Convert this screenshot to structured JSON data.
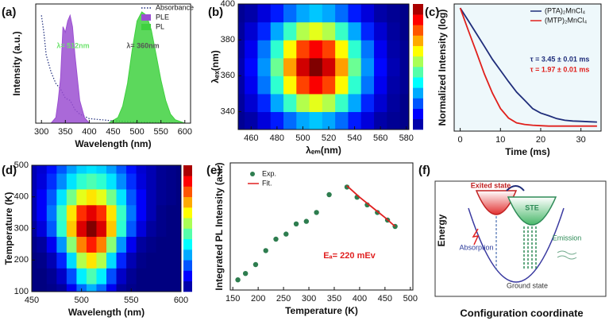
{
  "chart_data": [
    {
      "type": "line",
      "panel_label": "(a)",
      "x_label": "Wavelength (nm)",
      "y_label": "Intensity (a.u.)",
      "xlim": [
        288,
        612
      ],
      "xticks": [
        300,
        350,
        400,
        450,
        500,
        550,
        600
      ],
      "ylim": [
        0,
        105
      ],
      "legend": "upper right",
      "annotations": [
        {
          "text": "λ= 512nm",
          "color": "#6ee36e"
        },
        {
          "text": "λ= 360nm",
          "color": "#555555"
        }
      ],
      "series": [
        {
          "name": "Absorbance",
          "kind": "dotted",
          "color": "#1c2a7a",
          "x": [
            300,
            305,
            310,
            320,
            330,
            340,
            350,
            360,
            370,
            380,
            400,
            450,
            500,
            600
          ],
          "values": [
            95,
            80,
            60,
            45,
            35,
            30,
            22,
            20,
            12,
            8,
            4,
            2,
            1,
            0
          ]
        },
        {
          "name": "PLE",
          "kind": "area",
          "color": "#9b4fd1",
          "x": [
            320,
            330,
            335,
            340,
            345,
            350,
            355,
            360,
            365,
            370,
            375,
            380,
            390,
            400
          ],
          "values": [
            0,
            5,
            20,
            40,
            85,
            80,
            90,
            95,
            85,
            60,
            40,
            20,
            5,
            0
          ]
        },
        {
          "name": "PL",
          "kind": "area",
          "color": "#3fd13f",
          "x": [
            440,
            460,
            470,
            480,
            490,
            500,
            510,
            520,
            530,
            540,
            550,
            560,
            570,
            580,
            600
          ],
          "values": [
            0,
            5,
            15,
            35,
            65,
            90,
            98,
            95,
            82,
            60,
            38,
            20,
            8,
            3,
            0
          ]
        }
      ]
    },
    {
      "type": "heatmap",
      "panel_label": "(b)",
      "x_label": "λₑₘ(nm)",
      "y_label": "λₑₓ(nm)",
      "xlim": [
        450,
        582
      ],
      "xticks": [
        460,
        480,
        500,
        520,
        540,
        560,
        580
      ],
      "ylim": [
        330,
        400
      ],
      "yticks": [
        340,
        360,
        380,
        400
      ],
      "zlim": [
        0,
        100
      ],
      "colorbar": true,
      "x": [
        450,
        460,
        470,
        480,
        490,
        500,
        510,
        520,
        530,
        540,
        550,
        560,
        570,
        580
      ],
      "y": [
        335,
        345,
        355,
        365,
        375,
        385,
        395
      ],
      "z": [
        [
          2,
          4,
          9,
          15,
          23,
          29,
          32,
          29,
          23,
          15,
          9,
          4,
          2,
          1
        ],
        [
          3,
          8,
          16,
          29,
          43,
          55,
          60,
          55,
          43,
          29,
          16,
          8,
          3,
          1
        ],
        [
          4,
          11,
          24,
          42,
          63,
          81,
          88,
          81,
          63,
          42,
          24,
          11,
          4,
          2
        ],
        [
          5,
          13,
          27,
          48,
          72,
          92,
          100,
          92,
          72,
          48,
          27,
          13,
          5,
          2
        ],
        [
          4,
          11,
          24,
          42,
          63,
          81,
          88,
          81,
          63,
          42,
          24,
          11,
          4,
          2
        ],
        [
          3,
          8,
          16,
          29,
          43,
          55,
          60,
          55,
          43,
          29,
          16,
          8,
          3,
          1
        ],
        [
          2,
          4,
          9,
          15,
          23,
          29,
          32,
          29,
          23,
          15,
          9,
          4,
          2,
          1
        ]
      ]
    },
    {
      "type": "line",
      "panel_label": "(c)",
      "x_label": "Time (ms)",
      "y_label": "Normalized Intensity (log)",
      "xlim": [
        -1.5,
        35
      ],
      "xticks": [
        0,
        10,
        20,
        30
      ],
      "ylim": [
        0.004,
        1.2
      ],
      "log_y": true,
      "legend": "upper right",
      "annotations": [
        {
          "text": "τ = 3.45 ± 0.01 ms",
          "color": "#1f2d7a"
        },
        {
          "text": "τ = 1.97 ± 0.01 ms",
          "color": "#e0201c"
        }
      ],
      "x": [
        0,
        2,
        4,
        6,
        8,
        10,
        12,
        14,
        16,
        18,
        20,
        22,
        24,
        26,
        28,
        30,
        32,
        34
      ],
      "series": [
        {
          "name": "(PTA)₂MnCl₄",
          "kind": "line",
          "color": "#1f2d7a",
          "values": [
            1,
            0.57,
            0.32,
            0.18,
            0.1,
            0.061,
            0.037,
            0.023,
            0.016,
            0.011,
            0.009,
            0.008,
            0.007,
            0.0065,
            0.0063,
            0.0062,
            0.0061,
            0.006
          ]
        },
        {
          "name": "(MTP)₂MnCl₄",
          "kind": "line",
          "color": "#e0201c",
          "values": [
            1,
            0.37,
            0.14,
            0.052,
            0.022,
            0.011,
            0.0072,
            0.0058,
            0.0054,
            0.0052,
            0.0051,
            0.005,
            0.005,
            0.005,
            0.005,
            0.005,
            0.005,
            0.005
          ]
        }
      ]
    },
    {
      "type": "heatmap",
      "panel_label": "(d)",
      "x_label": "Wavelength (nm)",
      "y_label": "Temperature (K)",
      "xlim": [
        450,
        600
      ],
      "xticks": [
        450,
        500,
        550,
        600
      ],
      "ylim": [
        100,
        500
      ],
      "yticks": [
        100,
        200,
        300,
        400,
        500
      ],
      "zlim": [
        0,
        100
      ],
      "colorbar": true,
      "x": [
        450,
        460,
        470,
        480,
        490,
        500,
        510,
        520,
        530,
        540,
        550,
        560,
        570,
        580,
        590,
        600
      ],
      "y": [
        100,
        150,
        200,
        250,
        300,
        350,
        400,
        450,
        500
      ],
      "z": [
        [
          0,
          0,
          1,
          3,
          11,
          23,
          30,
          23,
          11,
          3,
          1,
          0,
          0,
          0,
          0,
          0
        ],
        [
          0,
          0,
          2,
          7,
          20,
          36,
          45,
          36,
          20,
          7,
          2,
          0,
          0,
          0,
          0,
          0
        ],
        [
          0,
          1,
          5,
          16,
          34,
          55,
          65,
          55,
          34,
          16,
          5,
          1,
          0,
          0,
          0,
          0
        ],
        [
          1,
          3,
          11,
          27,
          51,
          75,
          85,
          75,
          51,
          27,
          11,
          3,
          1,
          0,
          0,
          0
        ],
        [
          3,
          9,
          21,
          42,
          68,
          91,
          100,
          91,
          68,
          42,
          21,
          9,
          3,
          1,
          0,
          0
        ],
        [
          5,
          12,
          24,
          43,
          65,
          83,
          90,
          83,
          65,
          43,
          24,
          12,
          5,
          1,
          0,
          0
        ],
        [
          5,
          12,
          21,
          35,
          49,
          60,
          65,
          60,
          49,
          35,
          21,
          12,
          5,
          2,
          1,
          0
        ],
        [
          5,
          9,
          17,
          26,
          35,
          42,
          45,
          42,
          35,
          26,
          17,
          9,
          5,
          2,
          1,
          0
        ],
        [
          5,
          8,
          14,
          21,
          28,
          33,
          35,
          33,
          28,
          21,
          14,
          8,
          5,
          2,
          1,
          0
        ]
      ]
    },
    {
      "type": "scatter",
      "panel_label": "(e)",
      "x_label": "Temperature (K)",
      "y_label": "Integrated PL Intensity (a.u.)",
      "xlim": [
        145,
        505
      ],
      "xticks": [
        150,
        200,
        250,
        300,
        350,
        400,
        450,
        500
      ],
      "ylim": [
        0,
        1
      ],
      "legend": "upper left",
      "annotations": [
        {
          "text": "Eₐ= 220 mEv",
          "color": "#e02020"
        }
      ],
      "series": [
        {
          "name": "Exp.",
          "kind": "points",
          "color": "#2e7d4f",
          "x": [
            160,
            175,
            195,
            215,
            235,
            255,
            275,
            295,
            315,
            340,
            375,
            395,
            415,
            435,
            455,
            470
          ],
          "values": [
            0.08,
            0.13,
            0.2,
            0.31,
            0.4,
            0.44,
            0.52,
            0.54,
            0.61,
            0.75,
            0.81,
            0.73,
            0.67,
            0.61,
            0.55,
            0.5
          ]
        },
        {
          "name": "Fit.",
          "kind": "line",
          "color": "#e02020",
          "x": [
            375,
            400,
            425,
            450,
            470
          ],
          "values": [
            0.82,
            0.73,
            0.65,
            0.57,
            0.5
          ]
        }
      ]
    }
  ],
  "diagram": {
    "panel_label": "(f)",
    "y_label": "Energy",
    "x_label": "Configuration coordinate",
    "labels": {
      "excited": "Exited state",
      "ste": "STE",
      "absorption": "Absorption",
      "emission": "Emission",
      "ground": "Ground state"
    }
  }
}
